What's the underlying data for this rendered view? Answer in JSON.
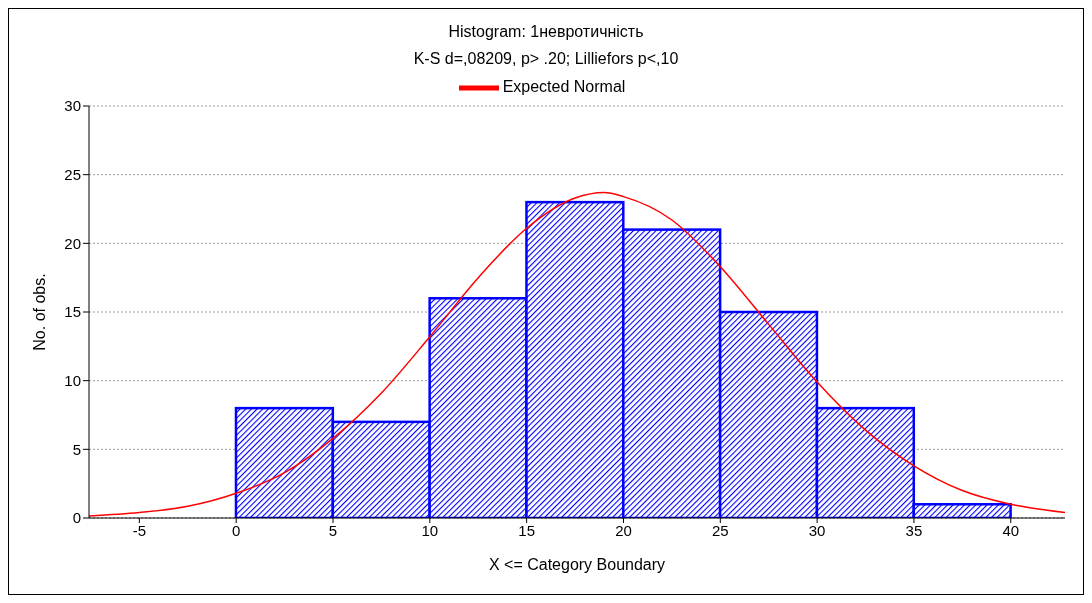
{
  "chart_data": {
    "type": "histogram",
    "title": "Histogram: 1невротичність",
    "subtitle": "K-S d=,08209, p> .20; Lilliefors p<,10",
    "xlabel": "X <= Category Boundary",
    "ylabel": "No. of obs.",
    "bins": [
      0,
      5,
      10,
      15,
      20,
      25,
      30,
      35,
      40
    ],
    "values": [
      8,
      7,
      16,
      23,
      21,
      15,
      8,
      1
    ],
    "color": "#0000ff",
    "series": [
      {
        "name": "Expected Normal",
        "type": "line",
        "color": "#ff0000",
        "x": [
          -7.6,
          -5,
          -2.5,
          0,
          2.5,
          5,
          7.5,
          10,
          12.5,
          15,
          17.5,
          19,
          20,
          22.5,
          25,
          27.5,
          30,
          32.5,
          35,
          37.5,
          40,
          42.8
        ],
        "values": [
          0.15,
          0.4,
          0.85,
          1.8,
          3.3,
          5.8,
          9.1,
          13.2,
          17.5,
          21.1,
          23.3,
          23.7,
          23.4,
          21.7,
          18.3,
          14.1,
          9.9,
          6.4,
          3.8,
          2.0,
          1.0,
          0.4
        ]
      }
    ],
    "xlim": [
      -7.6,
      42.8
    ],
    "xticks": [
      -5,
      0,
      5,
      10,
      15,
      20,
      25,
      30,
      35,
      40
    ],
    "ylim": [
      0,
      30
    ],
    "yticks": [
      0,
      5,
      10,
      15,
      20,
      25,
      30
    ],
    "grid": "y",
    "legend": "top"
  }
}
